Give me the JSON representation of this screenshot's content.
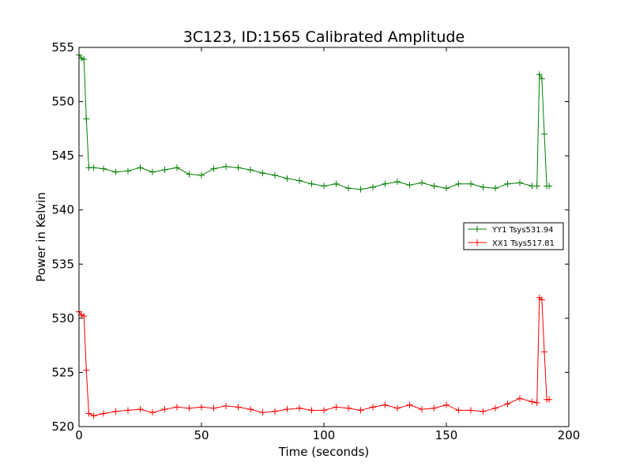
{
  "chart_data": {
    "type": "line",
    "title": "3C123, ID:1565 Calibrated Amplitude",
    "xlabel": "Time (seconds)",
    "ylabel": "Power in Kelvin",
    "xlim": [
      0,
      200
    ],
    "ylim": [
      520,
      555
    ],
    "xticks": [
      "0",
      "50",
      "100",
      "150",
      "200"
    ],
    "yticks": [
      "520",
      "525",
      "530",
      "535",
      "540",
      "545",
      "550",
      "555"
    ],
    "grid": false,
    "legend_position": "center-right",
    "marker": "plus",
    "series": [
      {
        "name": "YY1 Tsys531.94",
        "color": "#008000",
        "x": [
          0,
          1,
          2,
          3,
          4,
          6,
          10,
          15,
          20,
          25,
          30,
          35,
          40,
          45,
          50,
          55,
          60,
          65,
          70,
          75,
          80,
          85,
          90,
          95,
          100,
          105,
          110,
          115,
          120,
          125,
          130,
          135,
          140,
          145,
          150,
          155,
          160,
          165,
          170,
          175,
          180,
          185,
          187,
          188,
          189,
          190,
          191,
          192
        ],
        "y": [
          554.3,
          554.0,
          553.9,
          548.4,
          543.9,
          543.9,
          543.8,
          543.5,
          543.6,
          543.9,
          543.5,
          543.7,
          543.9,
          543.3,
          543.2,
          543.8,
          544.0,
          543.9,
          543.7,
          543.4,
          543.2,
          542.9,
          542.7,
          542.4,
          542.2,
          542.4,
          542.0,
          541.9,
          542.1,
          542.4,
          542.6,
          542.3,
          542.5,
          542.2,
          542.0,
          542.4,
          542.4,
          542.1,
          542.0,
          542.4,
          542.5,
          542.2,
          542.2,
          552.5,
          552.1,
          547.0,
          542.2,
          542.2
        ]
      },
      {
        "name": "XX1 Tsys517.81",
        "color": "#ff0000",
        "x": [
          0,
          1,
          2,
          3,
          4,
          6,
          10,
          15,
          20,
          25,
          30,
          35,
          40,
          45,
          50,
          55,
          60,
          65,
          70,
          75,
          80,
          85,
          90,
          95,
          100,
          105,
          110,
          115,
          120,
          125,
          130,
          135,
          140,
          145,
          150,
          155,
          160,
          165,
          170,
          175,
          180,
          185,
          187,
          188,
          189,
          190,
          191,
          192
        ],
        "y": [
          530.6,
          530.3,
          530.2,
          525.2,
          521.2,
          521.0,
          521.2,
          521.4,
          521.5,
          521.6,
          521.3,
          521.6,
          521.8,
          521.7,
          521.8,
          521.7,
          521.9,
          521.8,
          521.6,
          521.3,
          521.4,
          521.6,
          521.7,
          521.5,
          521.5,
          521.8,
          521.7,
          521.5,
          521.8,
          522.0,
          521.7,
          522.0,
          521.6,
          521.7,
          522.0,
          521.5,
          521.5,
          521.4,
          521.7,
          522.1,
          522.6,
          522.3,
          522.2,
          531.9,
          531.7,
          526.9,
          522.5,
          522.5
        ]
      }
    ]
  }
}
